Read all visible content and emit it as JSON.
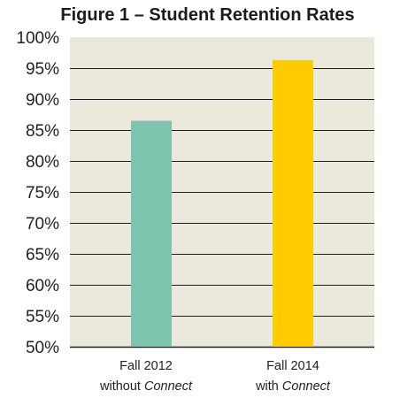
{
  "colors": {
    "plot_background": "#ebe8dc",
    "gridline": "#1f1f1f",
    "bar_without": "#7cc4ad",
    "bar_with": "#ffcc00",
    "text": "#222222"
  },
  "chart_data": {
    "type": "bar",
    "title": "Figure 1 – Student Retention Rates",
    "categories": [
      {
        "line1": "Fall 2012",
        "line2_prefix": "without ",
        "line2_emph": "Connect"
      },
      {
        "line1": "Fall 2014",
        "line2_prefix": "with ",
        "line2_emph": "Connect"
      }
    ],
    "values": [
      86.5,
      96.3
    ],
    "unit": "%",
    "ylim": [
      50,
      100
    ],
    "yticks": [
      50,
      55,
      60,
      65,
      70,
      75,
      80,
      85,
      90,
      95,
      100
    ],
    "ytick_labels": [
      "50%",
      "55%",
      "60%",
      "65%",
      "70%",
      "75%",
      "80%",
      "85%",
      "90%",
      "95%",
      "100%"
    ],
    "grid": true,
    "legend": "none"
  }
}
